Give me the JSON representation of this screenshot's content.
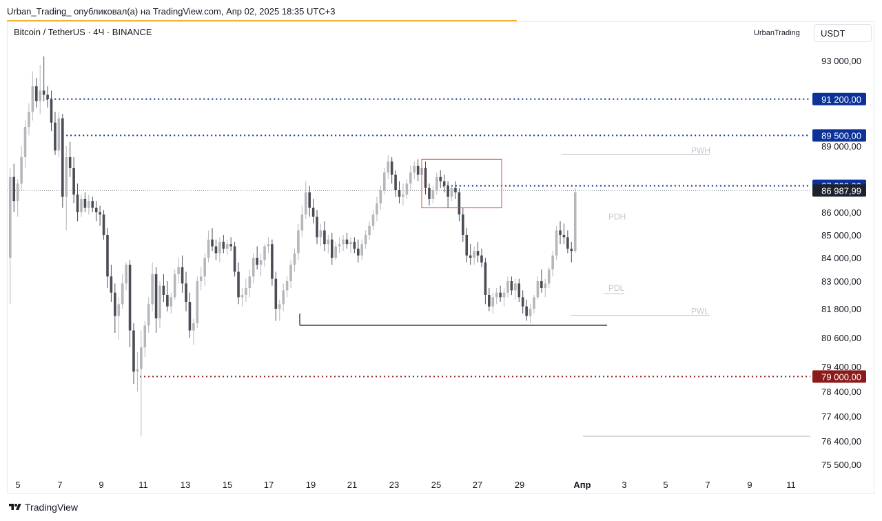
{
  "header": {
    "published": "Urban_Trading_ опубликовал(а) на TradingView.com, Апр 02, 2025 18:35 UTC+3"
  },
  "chart_header": {
    "symbol": "Bitcoin / TetherUS · 4Ч · BINANCE",
    "author": "UrbanTrading",
    "currency": "USDT"
  },
  "footer": {
    "brand": "TradingView"
  },
  "chart_data": {
    "type": "candlestick",
    "title": "Bitcoin / TetherUS · 4Ч · BINANCE",
    "ylim": [
      75000,
      95000
    ],
    "y_ticks": [
      {
        "value": 93000,
        "label": "93 000,00"
      },
      {
        "value": 89000,
        "label": "89 000,00"
      },
      {
        "value": 86000,
        "label": "86 000,00"
      },
      {
        "value": 85000,
        "label": "85 000,00"
      },
      {
        "value": 84000,
        "label": "84 000,00"
      },
      {
        "value": 83000,
        "label": "83 000,00"
      },
      {
        "value": 81800,
        "label": "81 800,00"
      },
      {
        "value": 80600,
        "label": "80 600,00"
      },
      {
        "value": 79400,
        "label": "79 400,00"
      },
      {
        "value": 78400,
        "label": "78 400,00"
      },
      {
        "value": 77400,
        "label": "77 400,00"
      },
      {
        "value": 76400,
        "label": "76 400,00"
      },
      {
        "value": 75500,
        "label": "75 500,00"
      }
    ],
    "x_ticks": [
      "5",
      "7",
      "9",
      "11",
      "13",
      "15",
      "17",
      "19",
      "21",
      "23",
      "25",
      "27",
      "29",
      "Апр",
      "3",
      "5",
      "7",
      "9",
      "11"
    ],
    "price_tags": [
      {
        "value": 91200,
        "label": "91 200,00",
        "color": "#0c3299"
      },
      {
        "value": 89500,
        "label": "89 500,00",
        "color": "#0c3299"
      },
      {
        "value": 87200,
        "label": "87 200,00",
        "color": "#0c3299"
      },
      {
        "value": 86987.99,
        "label": "86 987,99",
        "color": "#1e222d"
      },
      {
        "value": 79000,
        "label": "79 000,00",
        "color": "#8c1a1a"
      }
    ],
    "level_labels": [
      {
        "text": "PWH",
        "value": 88800
      },
      {
        "text": "PDH",
        "value": 85800
      },
      {
        "text": "PDL",
        "value": 82700
      },
      {
        "text": "PWL",
        "value": 81700
      }
    ],
    "candles": [
      [
        84000,
        88000,
        82000,
        87600
      ],
      [
        87600,
        88200,
        86000,
        86500
      ],
      [
        86500,
        87500,
        85800,
        87300
      ],
      [
        87300,
        89000,
        87000,
        88500
      ],
      [
        88500,
        90200,
        88000,
        89900
      ],
      [
        89900,
        91000,
        89500,
        90600
      ],
      [
        90600,
        92500,
        90200,
        91800
      ],
      [
        91800,
        92200,
        90800,
        91100
      ],
      [
        91100,
        92800,
        90500,
        91600
      ],
      [
        91600,
        93200,
        91100,
        91400
      ],
      [
        91400,
        91800,
        90800,
        91200
      ],
      [
        91200,
        91600,
        89700,
        90100
      ],
      [
        90100,
        90600,
        88600,
        88800
      ],
      [
        88800,
        90600,
        88500,
        90300
      ],
      [
        90300,
        90500,
        86200,
        86700
      ],
      [
        86700,
        89000,
        85200,
        88500
      ],
      [
        88500,
        89200,
        87600,
        88000
      ],
      [
        88000,
        88500,
        86400,
        86800
      ],
      [
        86800,
        87300,
        85600,
        86000
      ],
      [
        86000,
        86800,
        85800,
        86600
      ],
      [
        86600,
        86900,
        86000,
        86200
      ],
      [
        86200,
        86800,
        85900,
        86500
      ],
      [
        86500,
        86700,
        86000,
        86200
      ],
      [
        86200,
        86500,
        85600,
        86000
      ],
      [
        86000,
        86300,
        85400,
        85900
      ],
      [
        85900,
        86100,
        84800,
        85000
      ],
      [
        85000,
        85300,
        82700,
        83200
      ],
      [
        83200,
        83700,
        82100,
        82500
      ],
      [
        82500,
        82900,
        80800,
        81500
      ],
      [
        81500,
        82300,
        80500,
        82000
      ],
      [
        82000,
        83300,
        81800,
        82900
      ],
      [
        82900,
        83800,
        82600,
        83700
      ],
      [
        83700,
        83900,
        80200,
        80900
      ],
      [
        80900,
        81200,
        78700,
        79200
      ],
      [
        79200,
        80000,
        78400,
        79300
      ],
      [
        79300,
        80900,
        76600,
        80200
      ],
      [
        80200,
        81300,
        79800,
        81100
      ],
      [
        81100,
        82300,
        80800,
        82000
      ],
      [
        82000,
        83800,
        81700,
        83300
      ],
      [
        83300,
        83600,
        80800,
        81400
      ],
      [
        81400,
        83000,
        81000,
        82800
      ],
      [
        82800,
        83300,
        82100,
        82400
      ],
      [
        82400,
        83000,
        81700,
        81900
      ],
      [
        81900,
        82500,
        81600,
        82300
      ],
      [
        82300,
        83500,
        82200,
        83300
      ],
      [
        83300,
        84000,
        82900,
        83600
      ],
      [
        83600,
        84100,
        82500,
        82900
      ],
      [
        82900,
        83400,
        81700,
        82100
      ],
      [
        82100,
        82500,
        80600,
        80900
      ],
      [
        80900,
        81400,
        80300,
        81200
      ],
      [
        81200,
        83200,
        81000,
        83000
      ],
      [
        83000,
        83600,
        82600,
        83200
      ],
      [
        83200,
        84200,
        82800,
        84000
      ],
      [
        84000,
        85200,
        83800,
        84800
      ],
      [
        84800,
        85300,
        84300,
        84500
      ],
      [
        84500,
        84800,
        83900,
        84200
      ],
      [
        84200,
        84900,
        83800,
        84700
      ],
      [
        84700,
        85000,
        84200,
        84400
      ],
      [
        84400,
        84800,
        84100,
        84600
      ],
      [
        84600,
        84900,
        84300,
        84500
      ],
      [
        84500,
        84700,
        83200,
        83400
      ],
      [
        83400,
        83800,
        82000,
        82300
      ],
      [
        82300,
        82700,
        81900,
        82400
      ],
      [
        82400,
        83100,
        82100,
        82700
      ],
      [
        82700,
        83500,
        82300,
        83200
      ],
      [
        83200,
        84200,
        82900,
        84000
      ],
      [
        84000,
        84500,
        83500,
        83700
      ],
      [
        83700,
        84200,
        83200,
        83900
      ],
      [
        83900,
        84600,
        83600,
        84500
      ],
      [
        84500,
        84900,
        84200,
        84600
      ],
      [
        84600,
        84800,
        82800,
        83100
      ],
      [
        83100,
        83400,
        81300,
        81800
      ],
      [
        81800,
        82200,
        81300,
        82000
      ],
      [
        82000,
        82900,
        81700,
        82600
      ],
      [
        82600,
        83200,
        82300,
        83000
      ],
      [
        83000,
        83900,
        82700,
        83700
      ],
      [
        83700,
        84400,
        83400,
        84200
      ],
      [
        84200,
        85500,
        83900,
        85200
      ],
      [
        85200,
        86300,
        84900,
        85900
      ],
      [
        85900,
        87400,
        85700,
        86900
      ],
      [
        86900,
        87200,
        85800,
        86200
      ],
      [
        86200,
        86600,
        85500,
        85800
      ],
      [
        85800,
        86100,
        84600,
        84900
      ],
      [
        84900,
        85500,
        84500,
        85200
      ],
      [
        85200,
        85600,
        84300,
        84600
      ],
      [
        84600,
        85000,
        84200,
        84800
      ],
      [
        84800,
        85100,
        83700,
        84000
      ],
      [
        84000,
        84700,
        83900,
        84500
      ],
      [
        84500,
        84900,
        84200,
        84600
      ],
      [
        84600,
        85000,
        84300,
        84800
      ],
      [
        84800,
        85100,
        84400,
        84600
      ],
      [
        84600,
        84900,
        84200,
        84700
      ],
      [
        84700,
        84900,
        84200,
        84400
      ],
      [
        84400,
        84800,
        83800,
        84100
      ],
      [
        84100,
        84800,
        83900,
        84600
      ],
      [
        84600,
        85200,
        84400,
        85000
      ],
      [
        85000,
        85600,
        84800,
        85400
      ],
      [
        85400,
        86100,
        85200,
        85900
      ],
      [
        85900,
        86700,
        85600,
        86400
      ],
      [
        86400,
        87200,
        86100,
        87000
      ],
      [
        87000,
        88000,
        86800,
        87800
      ],
      [
        87800,
        88600,
        87500,
        88300
      ],
      [
        88300,
        88500,
        87300,
        87700
      ],
      [
        87700,
        87900,
        86700,
        87000
      ],
      [
        87000,
        87400,
        86400,
        86700
      ],
      [
        86700,
        87300,
        86300,
        86800
      ],
      [
        86800,
        87500,
        86600,
        87300
      ],
      [
        87300,
        88100,
        87000,
        87800
      ],
      [
        87800,
        88300,
        87500,
        88100
      ],
      [
        88100,
        88400,
        87400,
        87700
      ],
      [
        87700,
        88200,
        87500,
        88000
      ],
      [
        88000,
        88300,
        86800,
        87100
      ],
      [
        87100,
        87300,
        86300,
        86600
      ],
      [
        86600,
        87200,
        86400,
        87000
      ],
      [
        87000,
        87800,
        86800,
        87600
      ],
      [
        87600,
        87900,
        87100,
        87400
      ],
      [
        87400,
        87700,
        86900,
        87200
      ],
      [
        87200,
        87400,
        86200,
        86700
      ],
      [
        86700,
        87200,
        86500,
        87100
      ],
      [
        87100,
        87400,
        86600,
        86900
      ],
      [
        86900,
        87100,
        85600,
        85900
      ],
      [
        85900,
        86200,
        84700,
        85000
      ],
      [
        85000,
        85300,
        83800,
        84100
      ],
      [
        84100,
        84600,
        83700,
        84000
      ],
      [
        84000,
        84500,
        83700,
        84300
      ],
      [
        84300,
        84700,
        83800,
        84100
      ],
      [
        84100,
        84400,
        83600,
        83800
      ],
      [
        83800,
        84000,
        82000,
        82400
      ],
      [
        82400,
        82700,
        81700,
        81900
      ],
      [
        81900,
        82500,
        81600,
        82300
      ],
      [
        82300,
        82700,
        82000,
        82500
      ],
      [
        82500,
        82800,
        82100,
        82300
      ],
      [
        82300,
        82700,
        81900,
        82500
      ],
      [
        82500,
        83200,
        82300,
        83000
      ],
      [
        83000,
        83200,
        82400,
        82600
      ],
      [
        82600,
        83100,
        82200,
        82900
      ],
      [
        82900,
        83100,
        82100,
        82300
      ],
      [
        82300,
        82600,
        81600,
        81900
      ],
      [
        81900,
        82200,
        81300,
        81500
      ],
      [
        81500,
        82000,
        81200,
        81800
      ],
      [
        81800,
        82400,
        81600,
        82300
      ],
      [
        82300,
        83200,
        82200,
        83000
      ],
      [
        83000,
        83500,
        82500,
        82700
      ],
      [
        82700,
        83100,
        82300,
        82900
      ],
      [
        82900,
        83600,
        82700,
        83500
      ],
      [
        83500,
        84300,
        83200,
        84100
      ],
      [
        84100,
        85400,
        83900,
        85200
      ],
      [
        85200,
        85600,
        84600,
        85000
      ],
      [
        85000,
        85500,
        84600,
        84900
      ],
      [
        84900,
        85200,
        84200,
        84400
      ],
      [
        84400,
        84700,
        83800,
        84300
      ],
      [
        84300,
        87100,
        84200,
        86900
      ]
    ],
    "dotted_levels": [
      {
        "value": 91200,
        "color": "#0c3299",
        "from_candle": 10
      },
      {
        "value": 89500,
        "color": "#0c3299",
        "from_candle": 12
      },
      {
        "value": 87200,
        "color": "#0c3299",
        "from_candle": 116
      },
      {
        "value": 79000,
        "color": "#8c1a1a",
        "from_candle": 35
      }
    ]
  }
}
